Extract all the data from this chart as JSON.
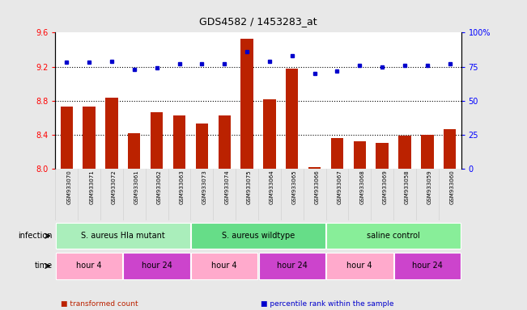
{
  "title": "GDS4582 / 1453283_at",
  "samples": [
    "GSM933070",
    "GSM933071",
    "GSM933072",
    "GSM933061",
    "GSM933062",
    "GSM933063",
    "GSM933073",
    "GSM933074",
    "GSM933075",
    "GSM933064",
    "GSM933065",
    "GSM933066",
    "GSM933067",
    "GSM933068",
    "GSM933069",
    "GSM933058",
    "GSM933059",
    "GSM933060"
  ],
  "bar_values": [
    8.73,
    8.73,
    8.84,
    8.42,
    8.67,
    8.63,
    8.53,
    8.63,
    9.53,
    8.82,
    9.18,
    8.02,
    8.36,
    8.32,
    8.31,
    8.39,
    8.4,
    8.47
  ],
  "dot_values": [
    78,
    78,
    79,
    73,
    74,
    77,
    77,
    77,
    86,
    79,
    83,
    70,
    72,
    76,
    75,
    76,
    76,
    77
  ],
  "ylim_left": [
    8.0,
    9.6
  ],
  "ylim_right": [
    0,
    100
  ],
  "yticks_left": [
    8.0,
    8.4,
    8.8,
    9.2,
    9.6
  ],
  "yticks_right": [
    0,
    25,
    50,
    75,
    100
  ],
  "ytick_labels_right": [
    "0",
    "25",
    "50",
    "75",
    "100%"
  ],
  "bar_color": "#bb2200",
  "dot_color": "#0000cc",
  "bg_color": "#e8e8e8",
  "plot_bg": "#ffffff",
  "infection_groups": [
    {
      "label": "S. aureus Hla mutant",
      "start": 0,
      "end": 6,
      "color": "#aaeebb"
    },
    {
      "label": "S. aureus wildtype",
      "start": 6,
      "end": 12,
      "color": "#66dd88"
    },
    {
      "label": "saline control",
      "start": 12,
      "end": 18,
      "color": "#88ee99"
    }
  ],
  "time_groups": [
    {
      "label": "hour 4",
      "start": 0,
      "end": 3,
      "color": "#ffaacc"
    },
    {
      "label": "hour 24",
      "start": 3,
      "end": 6,
      "color": "#cc44cc"
    },
    {
      "label": "hour 4",
      "start": 6,
      "end": 9,
      "color": "#ffaacc"
    },
    {
      "label": "hour 24",
      "start": 9,
      "end": 12,
      "color": "#cc44cc"
    },
    {
      "label": "hour 4",
      "start": 12,
      "end": 15,
      "color": "#ffaacc"
    },
    {
      "label": "hour 24",
      "start": 15,
      "end": 18,
      "color": "#cc44cc"
    }
  ],
  "label_row_infection": "infection",
  "label_row_time": "time",
  "legend_items": [
    {
      "label": "transformed count",
      "color": "#bb2200"
    },
    {
      "label": "percentile rank within the sample",
      "color": "#0000cc"
    }
  ]
}
